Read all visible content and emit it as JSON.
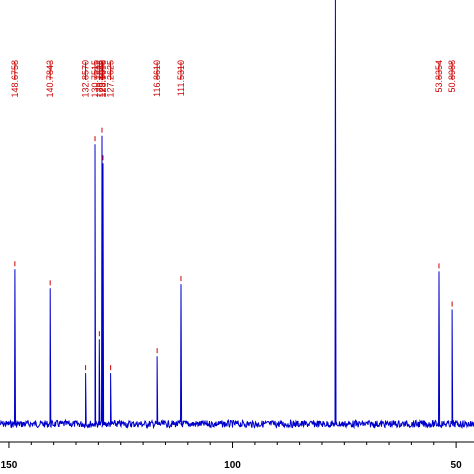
{
  "chart_data": {
    "type": "line",
    "title": "",
    "xlabel": "",
    "ylabel": "",
    "x_reversed": true,
    "xlim": [
      152,
      46
    ],
    "x_ticks": [
      150,
      100,
      50
    ],
    "y_range": [
      0,
      100
    ],
    "grid": false,
    "colors": {
      "spectrum": "#0000cc",
      "labels": "#cc0000",
      "axis": "#000000",
      "marker": "#cc0000"
    },
    "baseline": 1.0,
    "noise_amplitude": 0.9,
    "peaks": [
      {
        "ppm": 148.6758,
        "label": "148.6758",
        "height": 36.5
      },
      {
        "ppm": 140.7843,
        "label": "140.7843",
        "height": 32.0
      },
      {
        "ppm": 132.857,
        "label": "132.8570",
        "height": 12.0
      },
      {
        "ppm": 130.7515,
        "label": "130.7515",
        "height": 66.0
      },
      {
        "ppm": 129.7828,
        "label": "129.7828",
        "height": 20.0
      },
      {
        "ppm": 129.1976,
        "label": "129.1976",
        "height": 68.0
      },
      {
        "ppm": 128.9698,
        "label": "128.9698",
        "height": 61.5
      },
      {
        "ppm": 127.2625,
        "label": "127.2625",
        "height": 12.0
      },
      {
        "ppm": 116.861,
        "label": "116.8610",
        "height": 16.0
      },
      {
        "ppm": 111.531,
        "label": "111.5310",
        "height": 33.0
      },
      {
        "ppm": 77.0,
        "label": "",
        "height": 100.0
      },
      {
        "ppm": 53.8354,
        "label": "53.8354",
        "height": 36.0
      },
      {
        "ppm": 50.8988,
        "label": "50.8988",
        "height": 27.0
      }
    ]
  }
}
